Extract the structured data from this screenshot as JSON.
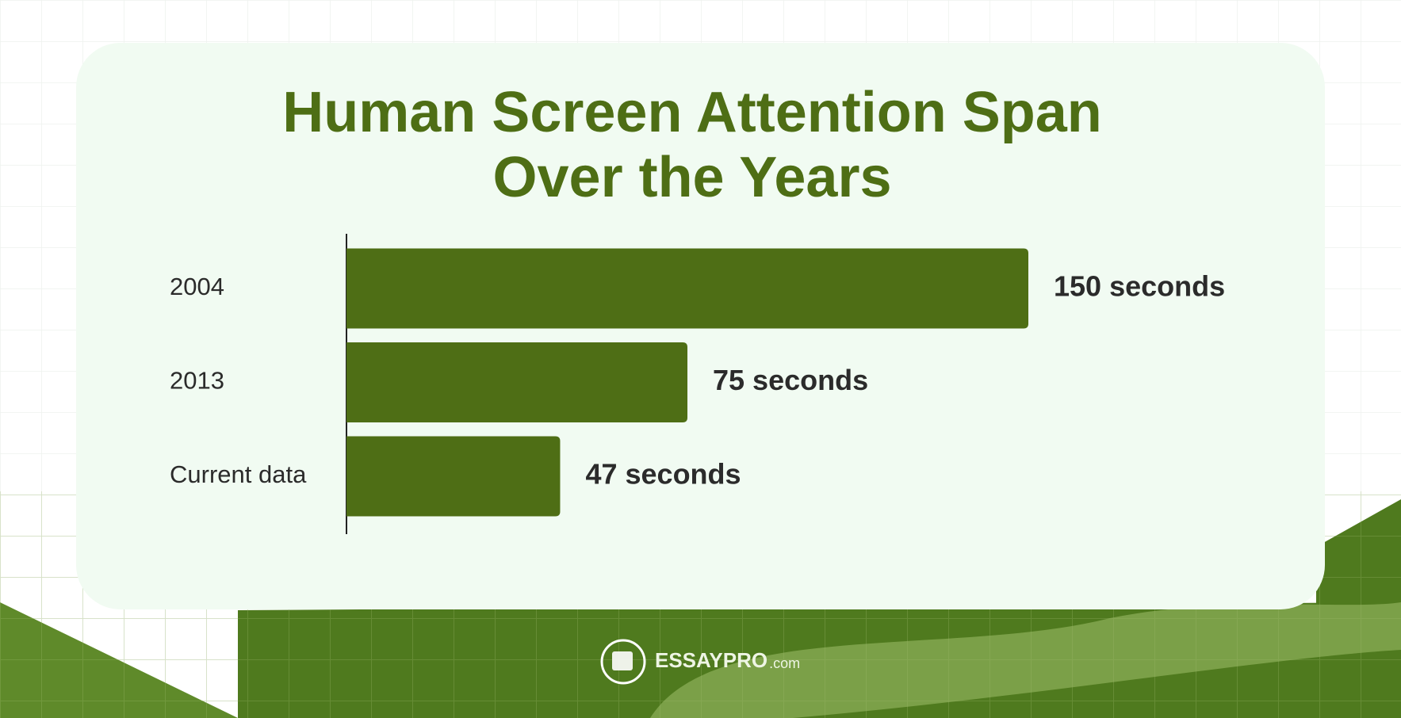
{
  "chart_data": {
    "type": "bar",
    "orientation": "horizontal",
    "title": "Human Screen Attention Span Over the Years",
    "categories": [
      "2004",
      "2013",
      "Current data"
    ],
    "values": [
      150,
      75,
      47
    ],
    "value_labels": [
      "150 seconds",
      "75 seconds",
      "47 seconds"
    ],
    "color": "#4e6e15"
  },
  "logo": {
    "brand": "ESSAYPRO",
    "suffix": ".com"
  }
}
